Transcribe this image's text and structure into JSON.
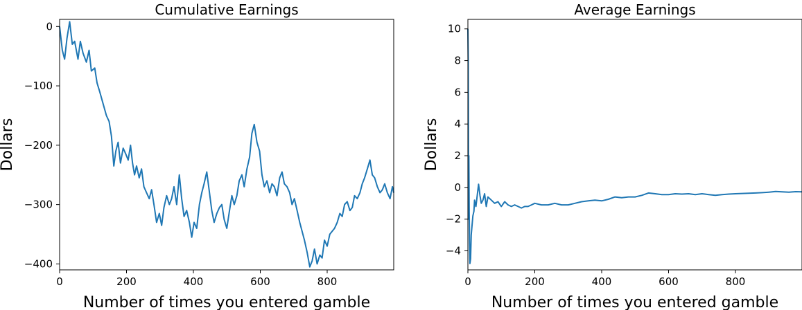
{
  "chart_data": [
    {
      "type": "line",
      "title": "Cumulative Earnings",
      "xlabel": "Number of times you entered gamble",
      "ylabel": "Dollars",
      "xlim": [
        0,
        999
      ],
      "ylim": [
        -410,
        12
      ],
      "xticks": [
        0,
        200,
        400,
        600,
        800
      ],
      "yticks": [
        0,
        -100,
        -200,
        -300,
        -400
      ],
      "ytick_labels": [
        "0",
        "−100",
        "−200",
        "−300",
        "−400"
      ],
      "grid": false,
      "color": "#1f77b4",
      "series": [
        {
          "x": [
            0,
            8,
            15,
            22,
            30,
            38,
            45,
            55,
            62,
            70,
            80,
            88,
            95,
            105,
            112,
            120,
            130,
            140,
            148,
            155,
            162,
            168,
            175,
            182,
            190,
            198,
            205,
            212,
            218,
            224,
            230,
            238,
            245,
            252,
            260,
            268,
            275,
            282,
            290,
            298,
            305,
            312,
            320,
            328,
            335,
            342,
            350,
            358,
            365,
            372,
            380,
            388,
            395,
            402,
            410,
            418,
            425,
            432,
            440,
            448,
            455,
            462,
            470,
            478,
            485,
            492,
            500,
            508,
            515,
            522,
            530,
            537,
            545,
            552,
            560,
            568,
            575,
            582,
            590,
            598,
            605,
            612,
            620,
            628,
            635,
            642,
            650,
            658,
            665,
            672,
            680,
            688,
            695,
            702,
            710,
            718,
            725,
            732,
            740,
            748,
            755,
            762,
            770,
            778,
            785,
            792,
            800,
            808,
            815,
            822,
            830,
            838,
            845,
            852,
            860,
            868,
            875,
            882,
            890,
            898,
            905,
            912,
            920,
            928,
            935,
            942,
            950,
            958,
            965,
            972,
            980,
            988,
            995,
            999
          ],
          "y": [
            0,
            -40,
            -55,
            -20,
            8,
            -30,
            -25,
            -55,
            -25,
            -45,
            -60,
            -40,
            -75,
            -70,
            -95,
            -110,
            -130,
            -150,
            -160,
            -185,
            -235,
            -210,
            -195,
            -230,
            -205,
            -215,
            -225,
            -200,
            -230,
            -250,
            -235,
            -255,
            -240,
            -270,
            -280,
            -290,
            -275,
            -300,
            -330,
            -315,
            -335,
            -305,
            -285,
            -300,
            -290,
            -270,
            -300,
            -250,
            -290,
            -320,
            -310,
            -330,
            -355,
            -330,
            -340,
            -300,
            -280,
            -265,
            -245,
            -280,
            -310,
            -330,
            -315,
            -305,
            -300,
            -325,
            -340,
            -310,
            -285,
            -300,
            -285,
            -260,
            -250,
            -270,
            -240,
            -220,
            -180,
            -165,
            -195,
            -210,
            -250,
            -270,
            -260,
            -280,
            -265,
            -270,
            -285,
            -255,
            -245,
            -265,
            -270,
            -280,
            -300,
            -290,
            -310,
            -330,
            -345,
            -360,
            -380,
            -405,
            -395,
            -375,
            -400,
            -385,
            -390,
            -360,
            -370,
            -350,
            -345,
            -340,
            -330,
            -315,
            -320,
            -300,
            -295,
            -310,
            -305,
            -285,
            -290,
            -280,
            -265,
            -255,
            -240,
            -225,
            -250,
            -255,
            -270,
            -280,
            -275,
            -265,
            -280,
            -290,
            -270,
            -280
          ]
        }
      ]
    },
    {
      "type": "line",
      "title": "Average Earnings",
      "xlabel": "Number of times you entered gamble",
      "ylabel": "Dollars",
      "xlim": [
        0,
        999
      ],
      "ylim": [
        -5.2,
        10.6
      ],
      "xticks": [
        0,
        200,
        400,
        600,
        800
      ],
      "yticks": [
        10,
        8,
        6,
        4,
        2,
        0,
        -2,
        -4
      ],
      "ytick_labels": [
        "10",
        "8",
        "6",
        "4",
        "2",
        "0",
        "−2",
        "−4"
      ],
      "grid": false,
      "color": "#1f77b4",
      "series": [
        {
          "x": [
            0,
            1,
            2,
            3,
            4,
            5,
            6,
            8,
            10,
            12,
            15,
            18,
            20,
            24,
            28,
            32,
            36,
            40,
            45,
            50,
            55,
            60,
            70,
            80,
            90,
            100,
            110,
            120,
            130,
            140,
            150,
            160,
            170,
            180,
            190,
            200,
            220,
            240,
            260,
            280,
            300,
            320,
            340,
            360,
            380,
            400,
            420,
            440,
            460,
            480,
            500,
            520,
            540,
            560,
            580,
            600,
            620,
            640,
            660,
            680,
            700,
            720,
            740,
            760,
            780,
            800,
            820,
            840,
            860,
            880,
            900,
            920,
            940,
            960,
            980,
            999
          ],
          "y": [
            10,
            8,
            -2,
            2,
            -1.5,
            -3.5,
            -4.8,
            -4.5,
            -3,
            -2.5,
            -1.8,
            -1.5,
            -0.8,
            -1.2,
            -0.5,
            0.2,
            -0.5,
            -1,
            -0.8,
            -0.4,
            -1.2,
            -0.6,
            -0.8,
            -1,
            -0.9,
            -1.2,
            -0.9,
            -1.1,
            -1.2,
            -1.1,
            -1.2,
            -1.3,
            -1.2,
            -1.2,
            -1.1,
            -1.0,
            -1.1,
            -1.1,
            -1.0,
            -1.1,
            -1.1,
            -1.0,
            -0.9,
            -0.85,
            -0.8,
            -0.85,
            -0.75,
            -0.6,
            -0.65,
            -0.6,
            -0.6,
            -0.5,
            -0.35,
            -0.4,
            -0.45,
            -0.45,
            -0.4,
            -0.42,
            -0.4,
            -0.45,
            -0.4,
            -0.45,
            -0.5,
            -0.45,
            -0.42,
            -0.4,
            -0.38,
            -0.37,
            -0.35,
            -0.33,
            -0.3,
            -0.26,
            -0.28,
            -0.3,
            -0.27,
            -0.28
          ]
        }
      ]
    }
  ]
}
